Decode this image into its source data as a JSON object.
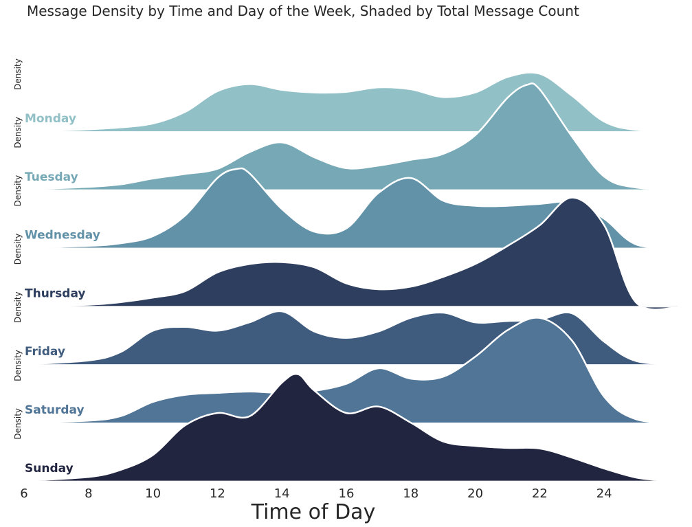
{
  "chart_data": {
    "type": "ridgeline",
    "title": "Message Density by Time and Day of the Week, Shaded by Total Message Count",
    "xlabel": "Time of Day",
    "ylabel": "Density",
    "xlim": [
      6,
      26.5
    ],
    "xticks": [
      6,
      8,
      10,
      12,
      14,
      16,
      18,
      20,
      22,
      24
    ],
    "grid": false,
    "series": [
      {
        "name": "Monday",
        "color": "#91c0c6",
        "points": [
          [
            6,
            0
          ],
          [
            7,
            0.01
          ],
          [
            8,
            0.03
          ],
          [
            9,
            0.06
          ],
          [
            10,
            0.12
          ],
          [
            11,
            0.3
          ],
          [
            12,
            0.62
          ],
          [
            13,
            0.73
          ],
          [
            14,
            0.64
          ],
          [
            15,
            0.6
          ],
          [
            16,
            0.61
          ],
          [
            17,
            0.68
          ],
          [
            18,
            0.65
          ],
          [
            19,
            0.53
          ],
          [
            20,
            0.6
          ],
          [
            21,
            0.84
          ],
          [
            22,
            0.89
          ],
          [
            23,
            0.55
          ],
          [
            24,
            0.15
          ],
          [
            25,
            0.02
          ],
          [
            26.5,
            0
          ]
        ]
      },
      {
        "name": "Tuesday",
        "color": "#76a9b5",
        "points": [
          [
            6,
            0
          ],
          [
            8,
            0.04
          ],
          [
            9,
            0.08
          ],
          [
            10,
            0.17
          ],
          [
            11,
            0.24
          ],
          [
            12,
            0.32
          ],
          [
            13,
            0.58
          ],
          [
            14,
            0.73
          ],
          [
            15,
            0.5
          ],
          [
            16,
            0.33
          ],
          [
            17,
            0.37
          ],
          [
            18,
            0.46
          ],
          [
            19,
            0.55
          ],
          [
            20,
            0.84
          ],
          [
            21,
            1.42
          ],
          [
            21.6,
            1.62
          ],
          [
            22,
            1.55
          ],
          [
            23,
            0.82
          ],
          [
            24,
            0.2
          ],
          [
            25,
            0.03
          ],
          [
            26.5,
            0
          ]
        ]
      },
      {
        "name": "Wednesday",
        "color": "#6292a8",
        "points": [
          [
            6,
            0
          ],
          [
            8,
            0.03
          ],
          [
            9,
            0.07
          ],
          [
            10,
            0.18
          ],
          [
            11,
            0.5
          ],
          [
            12,
            1.08
          ],
          [
            12.6,
            1.22
          ],
          [
            13,
            1.15
          ],
          [
            14,
            0.6
          ],
          [
            15,
            0.25
          ],
          [
            16,
            0.3
          ],
          [
            17,
            0.85
          ],
          [
            18,
            1.08
          ],
          [
            19,
            0.73
          ],
          [
            20,
            0.65
          ],
          [
            21,
            0.65
          ],
          [
            22,
            0.68
          ],
          [
            23,
            0.7
          ],
          [
            24,
            0.45
          ],
          [
            25,
            0.05
          ],
          [
            26.5,
            0
          ]
        ]
      },
      {
        "name": "Thursday",
        "color": "#2e3e5e",
        "points": [
          [
            6,
            0
          ],
          [
            8,
            0.02
          ],
          [
            9,
            0.06
          ],
          [
            10,
            0.13
          ],
          [
            11,
            0.23
          ],
          [
            12,
            0.52
          ],
          [
            13,
            0.65
          ],
          [
            14,
            0.68
          ],
          [
            15,
            0.6
          ],
          [
            16,
            0.35
          ],
          [
            17,
            0.26
          ],
          [
            18,
            0.3
          ],
          [
            19,
            0.45
          ],
          [
            20,
            0.65
          ],
          [
            21,
            0.93
          ],
          [
            22,
            1.25
          ],
          [
            23,
            1.68
          ],
          [
            24,
            1.25
          ],
          [
            25,
            0.05
          ],
          [
            26.5,
            0
          ]
        ]
      },
      {
        "name": "Friday",
        "color": "#3f5c7f",
        "points": [
          [
            6,
            0
          ],
          [
            8,
            0.06
          ],
          [
            9,
            0.19
          ],
          [
            10,
            0.52
          ],
          [
            11,
            0.58
          ],
          [
            12,
            0.52
          ],
          [
            13,
            0.65
          ],
          [
            14,
            0.82
          ],
          [
            15,
            0.51
          ],
          [
            16,
            0.41
          ],
          [
            17,
            0.51
          ],
          [
            18,
            0.72
          ],
          [
            19,
            0.8
          ],
          [
            20,
            0.65
          ],
          [
            21,
            0.67
          ],
          [
            22,
            0.69
          ],
          [
            23,
            0.79
          ],
          [
            24,
            0.35
          ],
          [
            25,
            0.05
          ],
          [
            26.5,
            0
          ]
        ]
      },
      {
        "name": "Saturday",
        "color": "#507596",
        "points": [
          [
            6,
            0
          ],
          [
            8,
            0.03
          ],
          [
            9,
            0.1
          ],
          [
            10,
            0.32
          ],
          [
            11,
            0.43
          ],
          [
            12,
            0.46
          ],
          [
            13,
            0.48
          ],
          [
            14,
            0.46
          ],
          [
            15,
            0.49
          ],
          [
            16,
            0.6
          ],
          [
            17,
            0.84
          ],
          [
            18,
            0.68
          ],
          [
            19,
            0.71
          ],
          [
            20,
            1.02
          ],
          [
            21,
            1.43
          ],
          [
            22,
            1.62
          ],
          [
            23,
            1.27
          ],
          [
            24,
            0.4
          ],
          [
            25,
            0.05
          ],
          [
            26.5,
            0
          ]
        ]
      },
      {
        "name": "Sunday",
        "color": "#212540",
        "points": [
          [
            6,
            0
          ],
          [
            8,
            0.06
          ],
          [
            9,
            0.17
          ],
          [
            10,
            0.4
          ],
          [
            11,
            0.86
          ],
          [
            12,
            1.05
          ],
          [
            13,
            1.0
          ],
          [
            14,
            1.52
          ],
          [
            14.5,
            1.65
          ],
          [
            15,
            1.4
          ],
          [
            16,
            1.05
          ],
          [
            17,
            1.15
          ],
          [
            18,
            0.9
          ],
          [
            19,
            0.61
          ],
          [
            20,
            0.54
          ],
          [
            21,
            0.51
          ],
          [
            22,
            0.5
          ],
          [
            23,
            0.36
          ],
          [
            24,
            0.19
          ],
          [
            25,
            0.05
          ],
          [
            26,
            0
          ],
          [
            26.5,
            0
          ]
        ]
      }
    ],
    "row_labels": [
      "Density",
      "Density",
      "Density",
      "Density",
      "Density",
      "Density",
      "Density"
    ]
  }
}
